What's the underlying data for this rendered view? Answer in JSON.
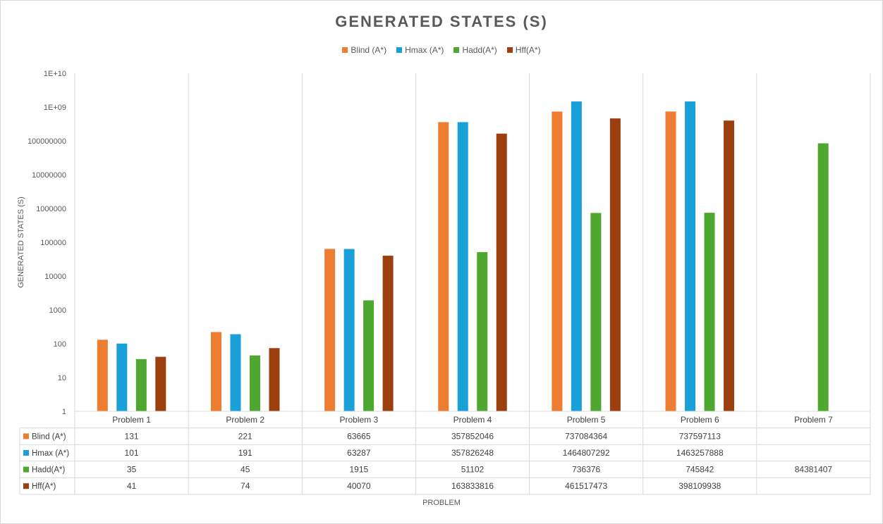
{
  "chart_data": {
    "type": "bar",
    "title": "GENERATED STATES (S)",
    "xlabel": "PROBLEM",
    "ylabel": "GENERATED STATES (S)",
    "yscale": "log",
    "ylim": [
      1,
      10000000000
    ],
    "yticks": [
      "1",
      "10",
      "100",
      "1000",
      "10000",
      "100000",
      "1000000",
      "10000000",
      "100000000",
      "1E+09",
      "1E+10"
    ],
    "categories": [
      "Problem 1",
      "Problem 2",
      "Problem 3",
      "Problem 4",
      "Problem 5",
      "Problem 6",
      "Problem 7"
    ],
    "legend_position": "top",
    "grid": "vertical category separators",
    "data_table": true,
    "series": [
      {
        "name": "Blind (A*)",
        "color": "#ED7D31",
        "values": [
          131,
          221,
          63665,
          357852046,
          737084364,
          737597113,
          null
        ]
      },
      {
        "name": "Hmax (A*)",
        "color": "#1AA0D8",
        "values": [
          101,
          191,
          63287,
          357826248,
          1464807292,
          1463257888,
          null
        ]
      },
      {
        "name": "Hadd(A*)",
        "color": "#4EA72E",
        "values": [
          35,
          45,
          1915,
          51102,
          736376,
          745842,
          84381407
        ]
      },
      {
        "name": "Hff(A*)",
        "color": "#9C3F0F",
        "values": [
          41,
          74,
          40070,
          163833816,
          461517473,
          398109938,
          null
        ]
      }
    ]
  }
}
